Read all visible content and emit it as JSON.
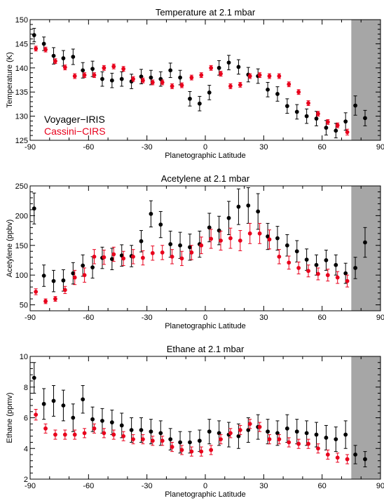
{
  "chart_data": [
    {
      "type": "scatter",
      "title": "Temperature at 2.1 mbar",
      "xlabel": "Planetographic Latitude",
      "ylabel": "Temperature (K)",
      "xlim": [
        -90,
        90
      ],
      "ylim": [
        125,
        150
      ],
      "xticks": [
        -90,
        -60,
        -30,
        0,
        30,
        60,
        90
      ],
      "yticks": [
        125,
        130,
        135,
        140,
        145,
        150
      ],
      "shade_x": [
        75,
        90
      ],
      "shade_color": "#a6a6a6",
      "legend": [
        {
          "name": "Voyager−IRIS",
          "color": "#000000"
        },
        {
          "name": "Cassini−CIRS",
          "color": "#e8001c"
        }
      ],
      "legend_position": "bottom-left",
      "series": [
        {
          "name": "Voyager−IRIS",
          "color": "#000000",
          "x": [
            -87.5,
            -82.5,
            -77.5,
            -72.5,
            -67.5,
            -62.5,
            -57.5,
            -52.5,
            -47.5,
            -42.5,
            -37.5,
            -32.5,
            -27.5,
            -22.5,
            -17.5,
            -12.5,
            -7.5,
            -2.5,
            2.5,
            7.5,
            12.5,
            17.5,
            22.5,
            27.5,
            32.5,
            37.5,
            42.5,
            47.5,
            52.5,
            57.5,
            62.5,
            67.5,
            72.5,
            77.5,
            82.5
          ],
          "y": [
            146.8,
            145.0,
            142.5,
            142.0,
            142.3,
            139.5,
            139.8,
            137.7,
            137.4,
            137.7,
            137.2,
            138.2,
            138.0,
            137.7,
            139.5,
            138.0,
            133.6,
            132.6,
            134.9,
            140.0,
            141.1,
            140.2,
            138.6,
            138.3,
            135.5,
            134.6,
            132.1,
            130.9,
            130.0,
            129.5,
            127.6,
            127.0,
            128.9,
            132.2,
            129.6
          ],
          "err": [
            1.4,
            1.4,
            1.7,
            1.6,
            1.6,
            1.6,
            1.6,
            1.5,
            1.5,
            1.5,
            1.5,
            1.5,
            1.5,
            1.5,
            1.5,
            1.5,
            1.5,
            1.5,
            1.5,
            1.5,
            1.5,
            1.5,
            1.5,
            1.5,
            1.5,
            1.5,
            1.5,
            1.5,
            1.5,
            1.5,
            1.5,
            1.5,
            1.8,
            2.0,
            1.6
          ]
        },
        {
          "name": "Cassini−CIRS",
          "color": "#e8001c",
          "x": [
            -87.5,
            -82.5,
            -77.5,
            -72.5,
            -67.5,
            -62.5,
            -57.5,
            -52.5,
            -47.5,
            -42.5,
            -37.5,
            -32.5,
            -27.5,
            -22.5,
            -17.5,
            -12.5,
            -7.5,
            -2.5,
            2.5,
            7.5,
            12.5,
            17.5,
            22.5,
            27.5,
            32.5,
            37.5,
            42.5,
            47.5,
            52.5,
            57.5,
            62.5,
            67.5,
            72.5
          ],
          "y": [
            144.0,
            143.8,
            141.4,
            140.1,
            138.3,
            138.5,
            138.5,
            140.0,
            140.3,
            139.8,
            137.7,
            137.4,
            137.0,
            137.0,
            136.2,
            136.4,
            138.0,
            138.5,
            140.0,
            138.8,
            136.2,
            136.5,
            138.3,
            138.5,
            138.3,
            138.3,
            136.6,
            135.0,
            132.7,
            130.5,
            128.8,
            128.1,
            126.7
          ],
          "err": [
            0.5,
            0.5,
            0.5,
            0.5,
            0.5,
            0.5,
            0.5,
            0.5,
            0.5,
            0.5,
            0.5,
            0.5,
            0.5,
            0.5,
            0.5,
            0.5,
            0.5,
            0.5,
            0.5,
            0.5,
            0.5,
            0.5,
            0.5,
            0.5,
            0.5,
            0.5,
            0.5,
            0.5,
            0.5,
            0.5,
            0.5,
            0.5,
            0.6
          ]
        }
      ]
    },
    {
      "type": "scatter",
      "title": "Acetylene at 2.1 mbar",
      "xlabel": "Planetographic Latitude",
      "ylabel": "Acetylene (ppbv)",
      "xlim": [
        -90,
        90
      ],
      "ylim": [
        40,
        250
      ],
      "xticks": [
        -90,
        -60,
        -30,
        0,
        30,
        60,
        90
      ],
      "yticks": [
        50,
        100,
        150,
        200,
        250
      ],
      "shade_x": [
        75,
        90
      ],
      "shade_color": "#a6a6a6",
      "series": [
        {
          "name": "Voyager−IRIS",
          "color": "#000000",
          "x": [
            -87.5,
            -82.5,
            -77.5,
            -72.5,
            -67.5,
            -62.5,
            -57.5,
            -52.5,
            -47.5,
            -42.5,
            -37.5,
            -32.5,
            -27.5,
            -22.5,
            -17.5,
            -12.5,
            -7.5,
            -2.5,
            2.5,
            7.5,
            12.5,
            17.5,
            22.5,
            27.5,
            32.5,
            37.5,
            42.5,
            47.5,
            52.5,
            57.5,
            62.5,
            67.5,
            72.5,
            77.5,
            82.5
          ],
          "y": [
            212,
            99,
            90,
            91,
            103,
            116,
            113,
            129,
            127,
            133,
            132,
            157,
            203,
            185,
            152,
            150,
            147,
            152,
            180,
            175,
            196,
            215,
            217,
            207,
            165,
            162,
            150,
            140,
            126,
            117,
            125,
            117,
            103,
            112,
            155
          ],
          "err": [
            26,
            18,
            18,
            18,
            18,
            18,
            18,
            18,
            18,
            18,
            18,
            18,
            22,
            22,
            22,
            22,
            22,
            22,
            24,
            24,
            28,
            30,
            30,
            30,
            22,
            20,
            18,
            18,
            18,
            17,
            17,
            17,
            17,
            18,
            25
          ]
        },
        {
          "name": "Cassini−CIRS",
          "color": "#e8001c",
          "x": [
            -87.5,
            -82.5,
            -77.5,
            -72.5,
            -67.5,
            -62.5,
            -57.5,
            -52.5,
            -47.5,
            -42.5,
            -37.5,
            -32.5,
            -27.5,
            -22.5,
            -17.5,
            -12.5,
            -7.5,
            -2.5,
            2.5,
            7.5,
            12.5,
            17.5,
            22.5,
            27.5,
            32.5,
            37.5,
            42.5,
            47.5,
            52.5,
            57.5,
            62.5,
            67.5,
            72.5
          ],
          "y": [
            72,
            56,
            60,
            75,
            96,
            100,
            131,
            130,
            135,
            128,
            131,
            129,
            137,
            138,
            131,
            128,
            138,
            150,
            161,
            158,
            162,
            158,
            170,
            170,
            160,
            131,
            121,
            112,
            107,
            102,
            100,
            96,
            90
          ],
          "err": [
            5,
            4,
            4,
            6,
            12,
            12,
            12,
            12,
            12,
            12,
            12,
            12,
            12,
            12,
            12,
            12,
            12,
            14,
            16,
            16,
            17,
            17,
            17,
            17,
            16,
            12,
            11,
            10,
            10,
            10,
            10,
            10,
            10
          ]
        }
      ]
    },
    {
      "type": "scatter",
      "title": "Ethane at 2.1 mbar",
      "xlabel": "Planetographic Latitude",
      "ylabel": "Ethane (ppmv)",
      "xlim": [
        -90,
        90
      ],
      "ylim": [
        2,
        10
      ],
      "xticks": [
        -90,
        -60,
        -30,
        0,
        30,
        60,
        90
      ],
      "yticks": [
        2,
        4,
        6,
        8,
        10
      ],
      "shade_x": [
        75,
        90
      ],
      "shade_color": "#a6a6a6",
      "series": [
        {
          "name": "Voyager−IRIS",
          "color": "#000000",
          "x": [
            -87.5,
            -82.5,
            -77.5,
            -72.5,
            -67.5,
            -62.5,
            -57.5,
            -52.5,
            -47.5,
            -42.5,
            -37.5,
            -32.5,
            -27.5,
            -22.5,
            -17.5,
            -12.5,
            -7.5,
            -2.5,
            2.5,
            7.5,
            12.5,
            17.5,
            22.5,
            27.5,
            32.5,
            37.5,
            42.5,
            47.5,
            52.5,
            57.5,
            62.5,
            67.5,
            72.5,
            77.5,
            82.5
          ],
          "y": [
            8.6,
            6.9,
            7.1,
            6.8,
            6.0,
            7.2,
            5.9,
            5.8,
            5.7,
            5.5,
            5.2,
            5.2,
            5.1,
            5.0,
            4.6,
            4.4,
            4.4,
            4.5,
            5.1,
            5.0,
            4.9,
            4.8,
            5.2,
            5.4,
            5.1,
            5.0,
            5.3,
            5.1,
            5.0,
            4.9,
            4.7,
            4.6,
            4.9,
            3.6,
            3.3
          ],
          "err": [
            1.0,
            1.0,
            1.0,
            1.0,
            0.9,
            0.9,
            0.8,
            0.8,
            0.8,
            0.8,
            0.8,
            0.8,
            0.8,
            0.8,
            0.7,
            0.7,
            0.7,
            0.7,
            0.8,
            0.8,
            0.8,
            0.8,
            0.8,
            0.8,
            0.8,
            0.8,
            0.9,
            0.8,
            0.8,
            0.8,
            0.8,
            0.8,
            0.9,
            0.6,
            0.5
          ]
        },
        {
          "name": "Cassini−CIRS",
          "color": "#e8001c",
          "x": [
            -87.5,
            -82.5,
            -77.5,
            -72.5,
            -67.5,
            -62.5,
            -57.5,
            -52.5,
            -47.5,
            -42.5,
            -37.5,
            -32.5,
            -27.5,
            -22.5,
            -17.5,
            -12.5,
            -7.5,
            -2.5,
            2.5,
            7.5,
            12.5,
            17.5,
            22.5,
            27.5,
            32.5,
            37.5,
            42.5,
            47.5,
            52.5,
            57.5,
            62.5,
            67.5,
            72.5
          ],
          "y": [
            6.2,
            5.3,
            4.9,
            4.9,
            4.9,
            5.0,
            5.3,
            5.0,
            4.9,
            4.8,
            4.6,
            4.6,
            4.5,
            4.5,
            4.1,
            3.9,
            3.8,
            3.8,
            3.9,
            4.6,
            5.0,
            5.2,
            5.6,
            5.4,
            4.6,
            4.6,
            4.4,
            4.3,
            4.3,
            4.0,
            3.6,
            3.4,
            3.3
          ],
          "err": [
            0.35,
            0.3,
            0.3,
            0.3,
            0.3,
            0.3,
            0.3,
            0.3,
            0.3,
            0.3,
            0.3,
            0.3,
            0.3,
            0.3,
            0.3,
            0.3,
            0.3,
            0.3,
            0.3,
            0.3,
            0.3,
            0.3,
            0.3,
            0.3,
            0.3,
            0.3,
            0.3,
            0.3,
            0.3,
            0.3,
            0.3,
            0.3,
            0.3
          ]
        }
      ]
    }
  ]
}
